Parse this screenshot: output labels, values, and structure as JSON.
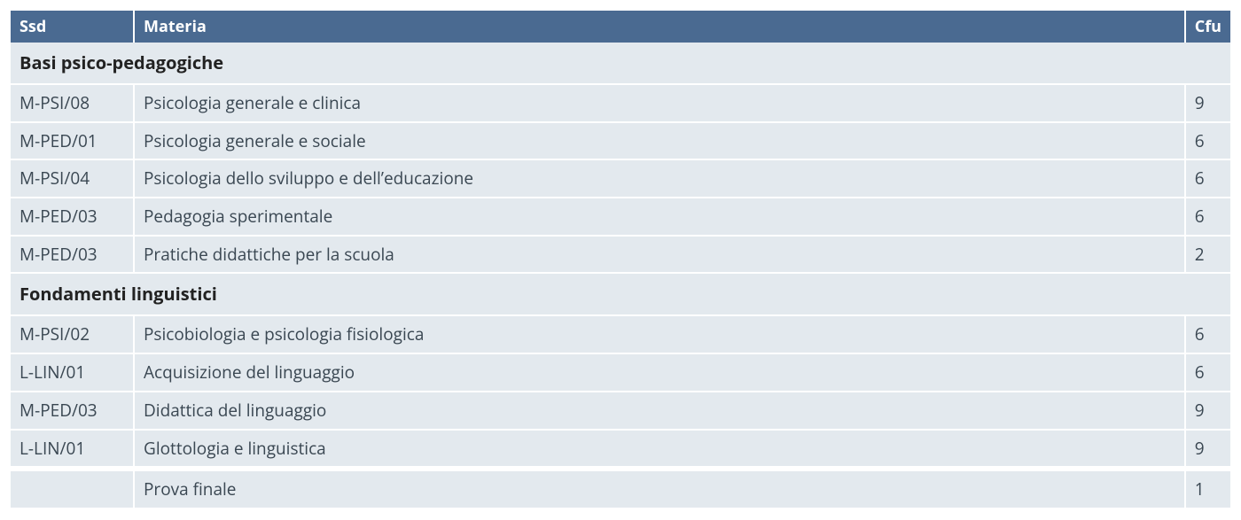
{
  "table": {
    "columns": {
      "ssd": "Ssd",
      "materia": "Materia",
      "cfu": "Cfu"
    },
    "column_widths": {
      "ssd": 140,
      "cfu": 50
    },
    "header_bg": "#4a6a91",
    "header_fg": "#ffffff",
    "row_bg": "#e3e9ee",
    "row_fg": "#3a4752",
    "border_color": "#ffffff",
    "sections": [
      {
        "title": "Basi psico-pedagogiche",
        "rows": [
          {
            "ssd": "M-PSI/08",
            "materia": "Psicologia generale e clinica",
            "cfu": "9"
          },
          {
            "ssd": "M-PED/01",
            "materia": "Psicologia generale e sociale",
            "cfu": "6"
          },
          {
            "ssd": "M-PSI/04",
            "materia": "Psicologia dello sviluppo e dell’educazione",
            "cfu": "6"
          },
          {
            "ssd": "M-PED/03",
            "materia": "Pedagogia sperimentale",
            "cfu": "6"
          },
          {
            "ssd": "M-PED/03",
            "materia": "Pratiche didattiche per la scuola",
            "cfu": "2"
          }
        ]
      },
      {
        "title": "Fondamenti linguistici",
        "rows": [
          {
            "ssd": "M-PSI/02",
            "materia": "Psicobiologia e psicologia fisiologica",
            "cfu": "6"
          },
          {
            "ssd": "L-LIN/01",
            "materia": "Acquisizione del linguaggio",
            "cfu": "6"
          },
          {
            "ssd": "M-PED/03",
            "materia": "Didattica del linguaggio",
            "cfu": "9"
          },
          {
            "ssd": "L-LIN/01",
            "materia": "Glottologia e linguistica",
            "cfu": "9"
          }
        ]
      }
    ],
    "final_row": {
      "ssd": "",
      "materia": "Prova finale",
      "cfu": "1"
    }
  }
}
